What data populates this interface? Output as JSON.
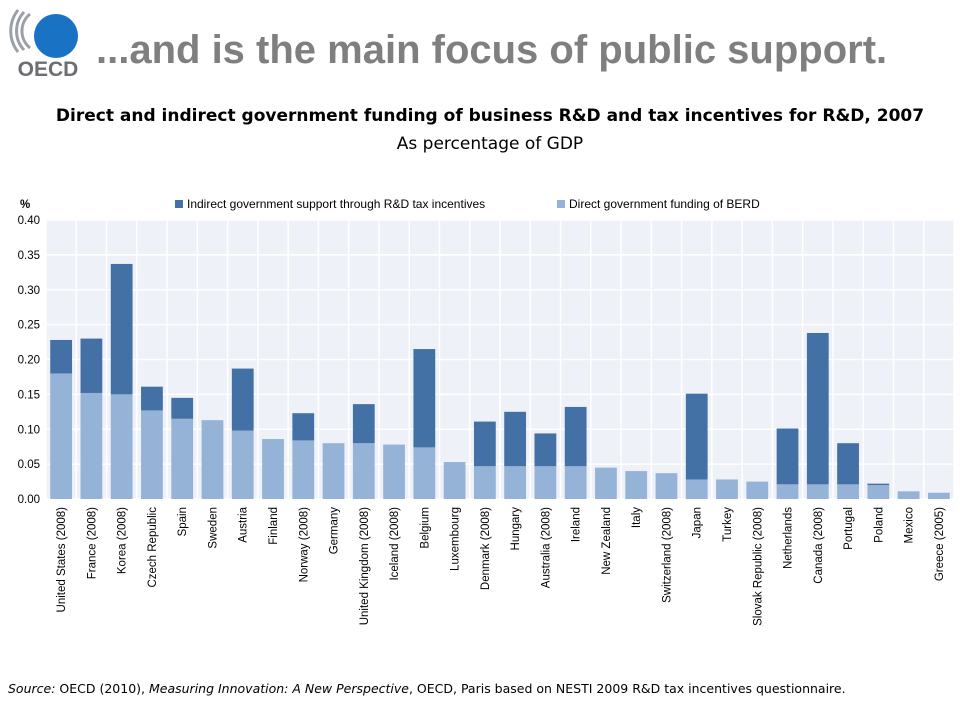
{
  "header": {
    "logo_text": "OECD",
    "slide_title": "...and is the main focus of public support."
  },
  "chart_data": {
    "type": "bar",
    "stacked": true,
    "title": "Direct and indirect government funding of business R&D and tax incentives for R&D, 2007",
    "subtitle": "As percentage of GDP",
    "ylabel": "%",
    "xlabel": "",
    "ylim": [
      0,
      0.4
    ],
    "yticks": [
      "0.00",
      "0.05",
      "0.10",
      "0.15",
      "0.20",
      "0.25",
      "0.30",
      "0.35",
      "0.40"
    ],
    "grid": true,
    "legend_position": "top",
    "categories": [
      "United States (2008)",
      "France (2008)",
      "Korea (2008)",
      "Czech Republic",
      "Spain",
      "Sweden",
      "Austria",
      "Finland",
      "Norway (2008)",
      "Germany",
      "United Kingdom (2008)",
      "Iceland (2008)",
      "Belgium",
      "Luxembourg",
      "Denmark (2008)",
      "Hungary",
      "Australia (2008)",
      "Ireland",
      "New Zealand",
      "Italy",
      "Switzerland (2008)",
      "Japan",
      "Turkey",
      "Slovak Republic (2008)",
      "Netherlands",
      "Canada (2008)",
      "Portugal",
      "Poland",
      "Mexico",
      "Greece (2005)"
    ],
    "series": [
      {
        "name": "Direct government funding of BERD",
        "color": "#95b3d7",
        "values": [
          0.18,
          0.152,
          0.15,
          0.127,
          0.115,
          0.113,
          0.098,
          0.086,
          0.084,
          0.08,
          0.08,
          0.078,
          0.074,
          0.053,
          0.047,
          0.047,
          0.047,
          0.047,
          0.045,
          0.04,
          0.037,
          0.028,
          0.028,
          0.025,
          0.021,
          0.021,
          0.021,
          0.02,
          0.011,
          0.009
        ]
      },
      {
        "name": "Indirect government support through R&D tax incentives",
        "color": "#4471a5",
        "values": [
          0.048,
          0.078,
          0.187,
          0.034,
          0.03,
          0.0,
          0.089,
          0.0,
          0.039,
          0.0,
          0.056,
          0.0,
          0.141,
          0.0,
          0.064,
          0.078,
          0.047,
          0.085,
          0.0,
          0.0,
          0.0,
          0.123,
          0.0,
          0.0,
          0.08,
          0.217,
          0.059,
          0.002,
          0.0,
          0.0
        ]
      }
    ]
  },
  "source": {
    "label": "Source:",
    "text1": " OECD (2010), ",
    "publication": "Measuring Innovation: A New Perspective",
    "text2": ", OECD, Paris based on NESTI 2009 R&D tax incentives questionnaire."
  }
}
